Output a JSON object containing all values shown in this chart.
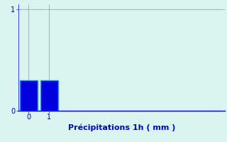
{
  "categories": [
    0,
    1
  ],
  "values": [
    0.3,
    0.3
  ],
  "bar_color": "#0000dd",
  "bar_edge_color": "#3399ff",
  "background_color": "#d8f5ef",
  "plot_bg_color": "#d8f5ef",
  "title": "Précipitations 1h ( mm )",
  "title_color": "#0000cc",
  "title_fontsize": 8,
  "tick_color": "#0000cc",
  "grid_color": "#999999",
  "xlim": [
    -0.5,
    9.5
  ],
  "ylim": [
    0,
    1.05
  ],
  "yticks": [
    0,
    1
  ],
  "xticks": [
    0,
    1
  ],
  "bar_width": 0.85,
  "spine_color": "#0000cc",
  "grid_linewidth": 0.5
}
